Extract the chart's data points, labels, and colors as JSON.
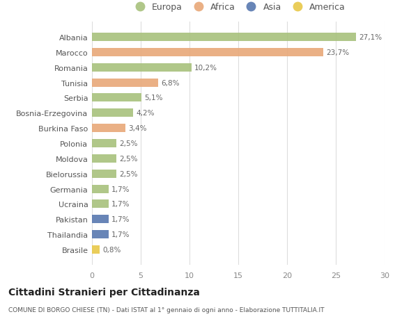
{
  "countries": [
    "Albania",
    "Marocco",
    "Romania",
    "Tunisia",
    "Serbia",
    "Bosnia-Erzegovina",
    "Burkina Faso",
    "Polonia",
    "Moldova",
    "Bielorussia",
    "Germania",
    "Ucraina",
    "Pakistan",
    "Thailandia",
    "Brasile"
  ],
  "values": [
    27.1,
    23.7,
    10.2,
    6.8,
    5.1,
    4.2,
    3.4,
    2.5,
    2.5,
    2.5,
    1.7,
    1.7,
    1.7,
    1.7,
    0.8
  ],
  "labels": [
    "27,1%",
    "23,7%",
    "10,2%",
    "6,8%",
    "5,1%",
    "4,2%",
    "3,4%",
    "2,5%",
    "2,5%",
    "2,5%",
    "1,7%",
    "1,7%",
    "1,7%",
    "1,7%",
    "0,8%"
  ],
  "continents": [
    "Europa",
    "Africa",
    "Europa",
    "Africa",
    "Europa",
    "Europa",
    "Africa",
    "Europa",
    "Europa",
    "Europa",
    "Europa",
    "Europa",
    "Asia",
    "Asia",
    "America"
  ],
  "colors": {
    "Europa": "#a8c17c",
    "Africa": "#e8a878",
    "Asia": "#5878b0",
    "America": "#e8c848"
  },
  "legend_order": [
    "Europa",
    "Africa",
    "Asia",
    "America"
  ],
  "title": "Cittadini Stranieri per Cittadinanza",
  "subtitle": "COMUNE DI BORGO CHIESE (TN) - Dati ISTAT al 1° gennaio di ogni anno - Elaborazione TUTTITALIA.IT",
  "xlim": [
    0,
    30
  ],
  "xticks": [
    0,
    5,
    10,
    15,
    20,
    25,
    30
  ],
  "bg_color": "#ffffff"
}
